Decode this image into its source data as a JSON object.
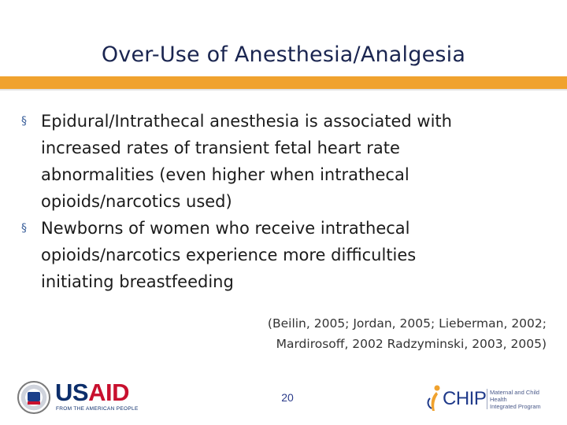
{
  "slide": {
    "title": "Over-Use of Anesthesia/Analgesia",
    "bullet_marker": "§",
    "bullets": [
      {
        "lines": [
          "Epidural/Intrathecal anesthesia is associated with",
          "increased rates of transient fetal heart rate",
          "abnormalities (even higher when intrathecal",
          "opioids/narcotics used)"
        ]
      },
      {
        "lines": [
          "Newborns of women who receive intrathecal",
          "opioids/narcotics experience more difficulties",
          "initiating breastfeeding"
        ]
      }
    ],
    "citation": {
      "line1": "(Beilin, 2005; Jordan, 2005; Lieberman, 2002;",
      "line2": "Mardirosoff, 2002 Radzyminski, 2003, 2005)"
    },
    "page_number": "20"
  },
  "footer": {
    "usaid": {
      "word_us": "US",
      "word_aid": "AID",
      "tagline": "FROM THE AMERICAN PEOPLE"
    },
    "chip": {
      "word": "CHIP",
      "tagline": [
        "Maternal and Child Health",
        "Integrated Program"
      ]
    }
  },
  "colors": {
    "title": "#1a2550",
    "accent_bar": "#f0a22e",
    "bullet_marker": "#3a5f9a",
    "usaid_blue": "#0c2e6b",
    "usaid_red": "#c8102e",
    "chip_blue": "#1f3a8a"
  },
  "icons": {
    "usaid_seal": "usaid-seal-icon",
    "chip_figure": "chip-figure-icon"
  }
}
